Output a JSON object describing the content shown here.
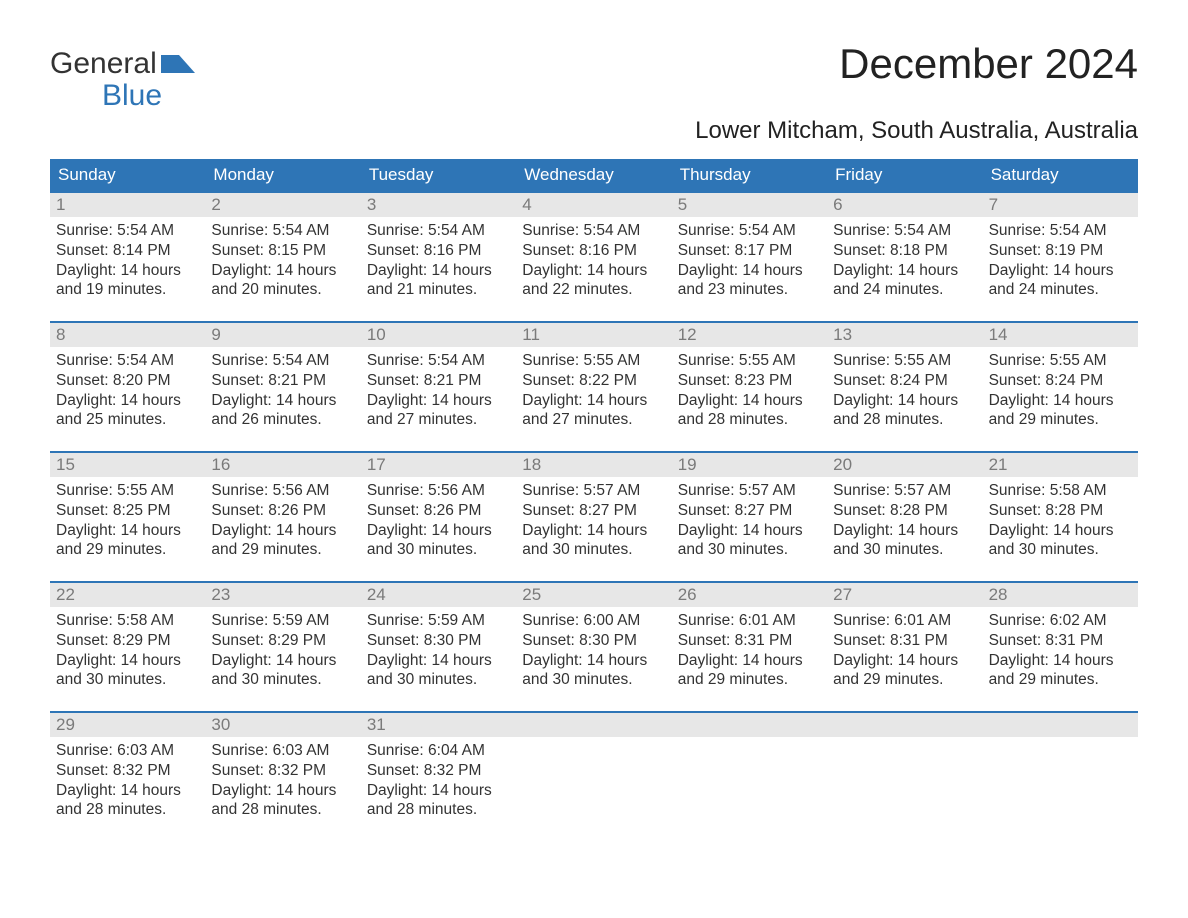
{
  "logo": {
    "word1": "General",
    "word2": "Blue"
  },
  "title": "December 2024",
  "location": "Lower Mitcham, South Australia, Australia",
  "colors": {
    "header_bg": "#2e75b6",
    "header_text": "#ffffff",
    "accent_line": "#2e75b6",
    "daynum_bg": "#e7e7e7",
    "daynum_text": "#7a7a7a",
    "body_text": "#333333",
    "logo_blue": "#2e75b6",
    "page_bg": "#ffffff"
  },
  "fonts": {
    "title_size_pt": 32,
    "location_size_pt": 18,
    "dow_size_pt": 13,
    "body_size_pt": 12
  },
  "days_of_week": [
    "Sunday",
    "Monday",
    "Tuesday",
    "Wednesday",
    "Thursday",
    "Friday",
    "Saturday"
  ],
  "labels": {
    "sunrise": "Sunrise:",
    "sunset": "Sunset:",
    "daylight": "Daylight:"
  },
  "weeks": [
    [
      {
        "n": "1",
        "sr": "5:54 AM",
        "ss": "8:14 PM",
        "dl": "14 hours and 19 minutes."
      },
      {
        "n": "2",
        "sr": "5:54 AM",
        "ss": "8:15 PM",
        "dl": "14 hours and 20 minutes."
      },
      {
        "n": "3",
        "sr": "5:54 AM",
        "ss": "8:16 PM",
        "dl": "14 hours and 21 minutes."
      },
      {
        "n": "4",
        "sr": "5:54 AM",
        "ss": "8:16 PM",
        "dl": "14 hours and 22 minutes."
      },
      {
        "n": "5",
        "sr": "5:54 AM",
        "ss": "8:17 PM",
        "dl": "14 hours and 23 minutes."
      },
      {
        "n": "6",
        "sr": "5:54 AM",
        "ss": "8:18 PM",
        "dl": "14 hours and 24 minutes."
      },
      {
        "n": "7",
        "sr": "5:54 AM",
        "ss": "8:19 PM",
        "dl": "14 hours and 24 minutes."
      }
    ],
    [
      {
        "n": "8",
        "sr": "5:54 AM",
        "ss": "8:20 PM",
        "dl": "14 hours and 25 minutes."
      },
      {
        "n": "9",
        "sr": "5:54 AM",
        "ss": "8:21 PM",
        "dl": "14 hours and 26 minutes."
      },
      {
        "n": "10",
        "sr": "5:54 AM",
        "ss": "8:21 PM",
        "dl": "14 hours and 27 minutes."
      },
      {
        "n": "11",
        "sr": "5:55 AM",
        "ss": "8:22 PM",
        "dl": "14 hours and 27 minutes."
      },
      {
        "n": "12",
        "sr": "5:55 AM",
        "ss": "8:23 PM",
        "dl": "14 hours and 28 minutes."
      },
      {
        "n": "13",
        "sr": "5:55 AM",
        "ss": "8:24 PM",
        "dl": "14 hours and 28 minutes."
      },
      {
        "n": "14",
        "sr": "5:55 AM",
        "ss": "8:24 PM",
        "dl": "14 hours and 29 minutes."
      }
    ],
    [
      {
        "n": "15",
        "sr": "5:55 AM",
        "ss": "8:25 PM",
        "dl": "14 hours and 29 minutes."
      },
      {
        "n": "16",
        "sr": "5:56 AM",
        "ss": "8:26 PM",
        "dl": "14 hours and 29 minutes."
      },
      {
        "n": "17",
        "sr": "5:56 AM",
        "ss": "8:26 PM",
        "dl": "14 hours and 30 minutes."
      },
      {
        "n": "18",
        "sr": "5:57 AM",
        "ss": "8:27 PM",
        "dl": "14 hours and 30 minutes."
      },
      {
        "n": "19",
        "sr": "5:57 AM",
        "ss": "8:27 PM",
        "dl": "14 hours and 30 minutes."
      },
      {
        "n": "20",
        "sr": "5:57 AM",
        "ss": "8:28 PM",
        "dl": "14 hours and 30 minutes."
      },
      {
        "n": "21",
        "sr": "5:58 AM",
        "ss": "8:28 PM",
        "dl": "14 hours and 30 minutes."
      }
    ],
    [
      {
        "n": "22",
        "sr": "5:58 AM",
        "ss": "8:29 PM",
        "dl": "14 hours and 30 minutes."
      },
      {
        "n": "23",
        "sr": "5:59 AM",
        "ss": "8:29 PM",
        "dl": "14 hours and 30 minutes."
      },
      {
        "n": "24",
        "sr": "5:59 AM",
        "ss": "8:30 PM",
        "dl": "14 hours and 30 minutes."
      },
      {
        "n": "25",
        "sr": "6:00 AM",
        "ss": "8:30 PM",
        "dl": "14 hours and 30 minutes."
      },
      {
        "n": "26",
        "sr": "6:01 AM",
        "ss": "8:31 PM",
        "dl": "14 hours and 29 minutes."
      },
      {
        "n": "27",
        "sr": "6:01 AM",
        "ss": "8:31 PM",
        "dl": "14 hours and 29 minutes."
      },
      {
        "n": "28",
        "sr": "6:02 AM",
        "ss": "8:31 PM",
        "dl": "14 hours and 29 minutes."
      }
    ],
    [
      {
        "n": "29",
        "sr": "6:03 AM",
        "ss": "8:32 PM",
        "dl": "14 hours and 28 minutes."
      },
      {
        "n": "30",
        "sr": "6:03 AM",
        "ss": "8:32 PM",
        "dl": "14 hours and 28 minutes."
      },
      {
        "n": "31",
        "sr": "6:04 AM",
        "ss": "8:32 PM",
        "dl": "14 hours and 28 minutes."
      },
      null,
      null,
      null,
      null
    ]
  ]
}
